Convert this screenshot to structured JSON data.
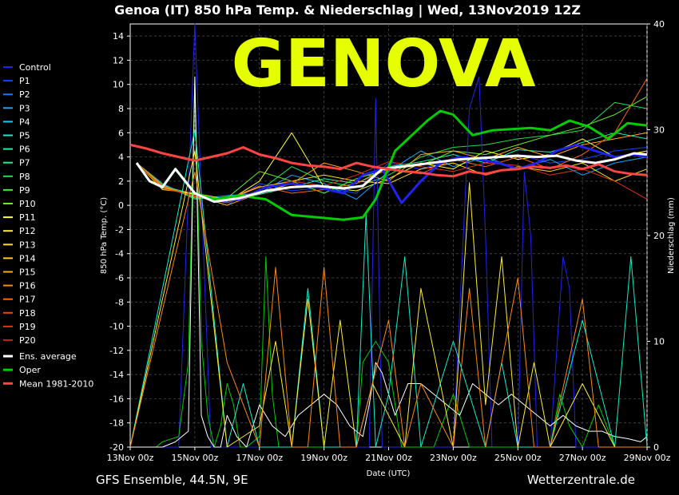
{
  "title": "Genoa  (IT)  850 hPa Temp. & Niederschlag | Wed, 13Nov2019 12Z",
  "watermark": "GENOVA",
  "footer": {
    "left": "GFS Ensemble, 44.5N, 9E",
    "right": "Wetterzentrale.de"
  },
  "chart_data": {
    "type": "line",
    "xlabel": "Date (UTC)",
    "ylabel": "850 hPa Temp. (°C)",
    "y2label": "Niederschlag (mm)",
    "ylim": [
      -20,
      15
    ],
    "y2lim": [
      0,
      40
    ],
    "xlim": [
      0,
      16
    ],
    "x_tick_labels": [
      "13Nov 00z",
      "15Nov 00z",
      "17Nov 00z",
      "19Nov 00z",
      "21Nov 00z",
      "23Nov 00z",
      "25Nov 00z",
      "27Nov 00z",
      "29Nov 00z"
    ],
    "y_ticks": [
      14,
      12,
      10,
      8,
      6,
      4,
      2,
      0,
      -2,
      -4,
      -6,
      -8,
      -10,
      -12,
      -14,
      -16,
      -18,
      -20
    ],
    "y2_ticks": [
      40,
      30,
      20,
      10,
      0
    ],
    "grid": true,
    "legend_placement": "left",
    "legend": [
      {
        "name": "Control",
        "color": "#2222ee"
      },
      {
        "name": "P1",
        "color": "#1144ff"
      },
      {
        "name": "P2",
        "color": "#1177ff"
      },
      {
        "name": "P3",
        "color": "#11aaff"
      },
      {
        "name": "P4",
        "color": "#11ccee"
      },
      {
        "name": "P5",
        "color": "#11eecc"
      },
      {
        "name": "P6",
        "color": "#22eeaa"
      },
      {
        "name": "P7",
        "color": "#22ee88"
      },
      {
        "name": "P8",
        "color": "#22dd55"
      },
      {
        "name": "P9",
        "color": "#33ee33"
      },
      {
        "name": "P10",
        "color": "#66ee22"
      },
      {
        "name": "P11",
        "color": "#ffff33"
      },
      {
        "name": "P12",
        "color": "#ffee33"
      },
      {
        "name": "P13",
        "color": "#ffdd22"
      },
      {
        "name": "P14",
        "color": "#ffcc22"
      },
      {
        "name": "P15",
        "color": "#ffaa11"
      },
      {
        "name": "P16",
        "color": "#ff8811"
      },
      {
        "name": "P17",
        "color": "#ff6611"
      },
      {
        "name": "P18",
        "color": "#ee4411"
      },
      {
        "name": "P19",
        "color": "#dd3311"
      },
      {
        "name": "P20",
        "color": "#bb2211"
      },
      {
        "name": "Ens. average",
        "color": "#ffffff"
      },
      {
        "name": "Oper",
        "color": "#00cc00"
      },
      {
        "name": "Mean 1981-2010",
        "color": "#ff4444"
      }
    ],
    "series": [
      {
        "key": "control",
        "color": "#2222ee",
        "x": [
          0.2,
          0.6,
          1.0,
          1.4,
          2.0,
          2.6,
          3.4,
          4.2,
          5.0,
          5.8,
          6.6,
          7.2,
          7.8,
          8.4,
          9.0,
          9.6,
          10.2,
          10.8,
          11.4,
          12.0,
          12.6,
          13.2,
          13.8,
          14.4,
          15.0,
          15.6,
          16.0
        ],
        "y": [
          3.5,
          2.0,
          1.5,
          3.0,
          1.0,
          0.3,
          0.5,
          1.5,
          1.8,
          1.5,
          1.0,
          2.5,
          3.0,
          0.2,
          2.0,
          3.5,
          4.0,
          3.8,
          3.5,
          3.0,
          3.5,
          4.5,
          5.0,
          4.5,
          4.0,
          4.2,
          4.0
        ]
      },
      {
        "key": "oper",
        "color": "#00cc00",
        "x": [
          0.2,
          0.6,
          1.0,
          1.4,
          2.0,
          2.6,
          3.4,
          4.2,
          5.0,
          5.8,
          6.6,
          7.2,
          7.6,
          8.2,
          8.8,
          9.2,
          9.6,
          10.0,
          10.6,
          11.2,
          11.8,
          12.4,
          13.0,
          13.6,
          14.2,
          14.8,
          15.4,
          16.0
        ],
        "y": [
          3.5,
          2.0,
          1.5,
          3.0,
          1.0,
          0.5,
          0.8,
          0.5,
          -0.8,
          -1.0,
          -1.2,
          -1.0,
          0.5,
          4.5,
          6.0,
          7.0,
          7.8,
          7.5,
          5.8,
          6.2,
          6.3,
          6.4,
          6.2,
          7.0,
          6.5,
          5.5,
          6.8,
          6.6
        ]
      },
      {
        "key": "average",
        "color": "#ffffff",
        "x": [
          0.2,
          0.6,
          1.0,
          1.4,
          2.0,
          2.6,
          3.4,
          4.2,
          5.0,
          5.8,
          6.6,
          7.2,
          7.8,
          8.4,
          9.0,
          9.6,
          10.2,
          10.8,
          11.4,
          12.0,
          12.6,
          13.2,
          13.8,
          14.4,
          15.0,
          15.6,
          16.0
        ],
        "y": [
          3.5,
          2.0,
          1.5,
          3.0,
          1.0,
          0.3,
          0.6,
          1.2,
          1.5,
          1.6,
          1.4,
          1.6,
          3.0,
          3.2,
          3.4,
          3.6,
          3.8,
          3.9,
          4.0,
          4.1,
          4.0,
          4.1,
          3.7,
          3.5,
          3.8,
          4.3,
          4.2
        ]
      },
      {
        "key": "climate",
        "color": "#ff4444",
        "x": [
          0.0,
          0.5,
          1.0,
          1.5,
          2.0,
          2.5,
          3.0,
          3.5,
          4.0,
          4.5,
          5.0,
          5.5,
          6.0,
          6.5,
          7.0,
          7.5,
          8.0,
          8.5,
          9.0,
          9.5,
          10.0,
          10.5,
          11.0,
          11.5,
          12.0,
          12.5,
          13.0,
          13.5,
          14.0,
          14.5,
          15.0,
          15.5,
          16.0
        ],
        "y": [
          5.0,
          4.7,
          4.3,
          4.0,
          3.7,
          4.0,
          4.3,
          4.8,
          4.2,
          3.9,
          3.5,
          3.3,
          3.2,
          3.0,
          3.5,
          3.2,
          3.0,
          2.8,
          2.7,
          2.5,
          2.4,
          2.8,
          2.6,
          2.9,
          3.0,
          3.2,
          3.1,
          3.3,
          3.0,
          3.4,
          2.8,
          2.6,
          2.5
        ]
      },
      {
        "key": "p1",
        "color": "#1144ff",
        "x": [
          0.2,
          1.0,
          2.0,
          3.0,
          4.0,
          5.0,
          6.0,
          7.0,
          8.0,
          9.0,
          10.0,
          11.0,
          12.0,
          13.0,
          14.0,
          15.0,
          16.0
        ],
        "y": [
          3.5,
          1.5,
          0.8,
          0.0,
          1.8,
          1.2,
          1.5,
          1.0,
          3.5,
          3.0,
          3.8,
          4.0,
          4.2,
          3.5,
          3.8,
          4.5,
          4.8
        ]
      },
      {
        "key": "p3",
        "color": "#11aaff",
        "x": [
          0.2,
          1.0,
          2.0,
          3.0,
          4.0,
          5.0,
          6.0,
          7.0,
          8.0,
          9.0,
          10.0,
          11.0,
          12.0,
          13.0,
          14.0,
          15.0,
          16.0
        ],
        "y": [
          3.5,
          1.8,
          0.5,
          0.8,
          1.0,
          2.5,
          1.8,
          0.5,
          2.8,
          4.5,
          3.2,
          4.0,
          3.0,
          3.8,
          2.5,
          3.5,
          4.0
        ]
      },
      {
        "key": "p6",
        "color": "#22eeaa",
        "x": [
          0.2,
          1.0,
          2.0,
          3.0,
          4.0,
          5.0,
          6.0,
          7.0,
          8.0,
          9.0,
          10.0,
          11.0,
          12.0,
          13.0,
          14.0,
          15.0,
          16.0
        ],
        "y": [
          3.5,
          1.6,
          0.9,
          0.4,
          0.9,
          1.5,
          2.2,
          1.8,
          3.2,
          3.6,
          4.2,
          3.5,
          4.6,
          4.4,
          5.2,
          6.0,
          5.5
        ]
      },
      {
        "key": "p8",
        "color": "#22dd55",
        "x": [
          0.2,
          1.0,
          2.0,
          3.0,
          4.0,
          5.0,
          6.0,
          7.0,
          8.0,
          9.0,
          10.0,
          11.0,
          12.0,
          13.0,
          14.0,
          15.0,
          16.0
        ],
        "y": [
          3.5,
          1.5,
          0.7,
          0.2,
          1.2,
          3.2,
          2.0,
          1.5,
          2.5,
          4.0,
          4.8,
          5.0,
          5.5,
          5.8,
          6.2,
          8.5,
          8.0
        ]
      },
      {
        "key": "p10",
        "color": "#66ee22",
        "x": [
          0.2,
          1.0,
          2.0,
          3.0,
          4.0,
          5.0,
          6.0,
          7.0,
          8.0,
          9.0,
          10.0,
          11.0,
          12.0,
          13.0,
          14.0,
          15.0,
          16.0
        ],
        "y": [
          3.5,
          1.7,
          0.6,
          0.6,
          2.8,
          2.0,
          1.0,
          2.2,
          3.0,
          3.3,
          4.5,
          4.2,
          5.0,
          5.8,
          6.5,
          7.5,
          9.0
        ]
      },
      {
        "key": "p11",
        "color": "#ffff33",
        "x": [
          0.2,
          1.0,
          2.0,
          3.0,
          4.0,
          5.0,
          6.0,
          7.0,
          8.0,
          9.0,
          10.0,
          11.0,
          12.0,
          13.0,
          14.0,
          15.0,
          16.0
        ],
        "y": [
          3.5,
          1.4,
          0.9,
          0.3,
          2.0,
          6.0,
          1.5,
          1.2,
          2.2,
          3.5,
          3.0,
          4.5,
          3.8,
          4.2,
          5.5,
          4.0,
          4.5
        ]
      },
      {
        "key": "p13",
        "color": "#ffdd22",
        "x": [
          0.2,
          1.0,
          2.0,
          3.0,
          4.0,
          5.0,
          6.0,
          7.0,
          8.0,
          9.0,
          10.0,
          11.0,
          12.0,
          13.0,
          14.0,
          15.0,
          16.0
        ],
        "y": [
          3.5,
          1.3,
          1.0,
          0.5,
          1.5,
          2.0,
          2.5,
          2.0,
          1.8,
          3.0,
          3.5,
          2.5,
          3.2,
          2.8,
          3.5,
          2.0,
          3.0
        ]
      },
      {
        "key": "p15",
        "color": "#ffaa11",
        "x": [
          0.2,
          1.0,
          2.0,
          3.0,
          4.0,
          5.0,
          6.0,
          7.0,
          8.0,
          9.0,
          10.0,
          11.0,
          12.0,
          13.0,
          14.0,
          15.0,
          16.0
        ],
        "y": [
          3.5,
          1.5,
          0.8,
          0.0,
          1.0,
          1.8,
          3.5,
          2.8,
          2.0,
          4.2,
          4.5,
          3.8,
          4.8,
          4.0,
          5.0,
          5.5,
          6.0
        ]
      },
      {
        "key": "p17",
        "color": "#ff6611",
        "x": [
          0.2,
          1.0,
          2.0,
          3.0,
          4.0,
          5.0,
          6.0,
          7.0,
          8.0,
          9.0,
          10.0,
          11.0,
          12.0,
          13.0,
          14.0,
          15.0,
          16.0
        ],
        "y": [
          3.5,
          1.6,
          0.7,
          0.5,
          1.6,
          1.0,
          1.3,
          1.8,
          3.0,
          2.6,
          3.8,
          3.2,
          4.0,
          3.0,
          4.2,
          6.0,
          10.5
        ]
      },
      {
        "key": "p19",
        "color": "#dd3311",
        "x": [
          0.2,
          1.0,
          2.0,
          3.0,
          4.0,
          5.0,
          6.0,
          7.0,
          8.0,
          9.0,
          10.0,
          11.0,
          12.0,
          13.0,
          14.0,
          15.0,
          16.0
        ],
        "y": [
          3.5,
          1.4,
          0.8,
          0.2,
          1.3,
          2.0,
          1.6,
          2.5,
          3.6,
          3.2,
          2.8,
          3.5,
          3.3,
          2.5,
          3.0,
          2.0,
          0.5
        ]
      },
      {
        "key": "precip_control",
        "color": "#2222ee",
        "y2": true,
        "x": [
          0.0,
          1.0,
          1.5,
          2.0,
          2.5,
          3.0,
          4.0,
          5.0,
          6.0,
          7.0,
          7.4,
          7.6,
          7.8,
          8.0,
          8.2,
          8.4,
          9.0,
          10.0,
          10.5,
          10.8,
          11.0,
          11.2,
          12.0,
          12.2,
          12.4,
          12.6,
          13.0,
          13.4,
          13.6,
          13.8,
          14.0,
          14.5,
          15.0,
          16.0
        ],
        "y": [
          0,
          0,
          0,
          42,
          0,
          0,
          0,
          0,
          0,
          0,
          0,
          33,
          0,
          0,
          0,
          0,
          0,
          0,
          32,
          35,
          20,
          0,
          0,
          26,
          20,
          0,
          0,
          18,
          15,
          0,
          0,
          0,
          0,
          0
        ]
      },
      {
        "key": "precip_oper",
        "color": "#00cc00",
        "y2": true,
        "x": [
          0.0,
          0.8,
          1.0,
          1.5,
          1.8,
          2.0,
          2.2,
          2.4,
          2.6,
          2.8,
          3.0,
          3.2,
          3.4,
          3.6,
          4.0,
          4.2,
          4.4,
          4.6,
          5.0,
          5.5,
          6.0,
          6.5,
          7.0,
          7.2,
          7.6,
          8.0,
          8.2,
          8.4,
          8.6,
          9.0,
          9.4,
          10.0,
          10.5,
          11.0,
          12.0,
          12.5,
          13.0,
          13.3,
          13.6,
          14.0,
          14.5,
          15.0,
          16.0
        ],
        "y": [
          0,
          0,
          0.5,
          1,
          8,
          35,
          10,
          3,
          0,
          2,
          6,
          4,
          0,
          0,
          1,
          18,
          5,
          0,
          0,
          0,
          0,
          0,
          0,
          8,
          10,
          8,
          4,
          0,
          0,
          0,
          0,
          5,
          0,
          0,
          0,
          0,
          0,
          5,
          2,
          0,
          4,
          0,
          0
        ]
      },
      {
        "key": "precip_average",
        "color": "#ffffff",
        "y2": true,
        "x": [
          0.0,
          1.0,
          1.4,
          1.8,
          2.0,
          2.2,
          2.4,
          2.6,
          2.8,
          3.0,
          3.3,
          3.6,
          4.0,
          4.4,
          4.8,
          5.2,
          5.6,
          6.0,
          6.4,
          6.8,
          7.2,
          7.4,
          7.6,
          7.8,
          8.2,
          8.6,
          9.0,
          9.4,
          9.8,
          10.2,
          10.6,
          11.0,
          11.4,
          11.8,
          12.2,
          12.6,
          13.0,
          13.4,
          13.8,
          14.2,
          14.6,
          15.0,
          15.4,
          15.8,
          16.0
        ],
        "y": [
          0,
          0,
          0.5,
          1.5,
          35,
          3,
          1,
          0,
          0,
          3,
          1,
          0,
          4,
          2,
          1,
          3,
          4,
          5,
          4,
          2,
          1,
          4,
          8,
          7,
          3,
          6,
          6,
          5,
          4,
          3,
          6,
          5,
          4,
          5,
          4,
          3,
          2,
          3,
          2,
          1.5,
          1.5,
          1,
          0.8,
          0.5,
          1
        ]
      },
      {
        "key": "precip_p5",
        "color": "#11eecc",
        "y2": true,
        "x": [
          0.0,
          2.0,
          3.0,
          3.5,
          4.0,
          5.0,
          5.5,
          6.0,
          7.0,
          7.3,
          7.6,
          8.0,
          8.5,
          9.0,
          10.0,
          11.0,
          11.5,
          12.0,
          13.0,
          14.0,
          15.0,
          15.5,
          16.0
        ],
        "y": [
          0,
          30,
          0,
          6,
          0,
          0,
          15,
          0,
          0,
          22,
          0,
          5,
          18,
          0,
          10,
          0,
          8,
          0,
          0,
          12,
          0,
          18,
          0
        ]
      },
      {
        "key": "precip_p12",
        "color": "#ffee33",
        "y2": true,
        "x": [
          0.0,
          2.0,
          3.0,
          4.0,
          4.5,
          5.0,
          5.5,
          6.0,
          6.5,
          7.0,
          7.5,
          8.0,
          8.5,
          9.0,
          10.0,
          10.5,
          11.0,
          11.5,
          12.0,
          12.5,
          13.0,
          14.0,
          15.0,
          16.0
        ],
        "y": [
          0,
          28,
          0,
          2,
          10,
          0,
          14,
          0,
          12,
          0,
          6,
          3,
          0,
          15,
          0,
          25,
          4,
          18,
          0,
          8,
          0,
          6,
          0,
          0
        ]
      },
      {
        "key": "precip_p16",
        "color": "#ff8811",
        "y2": true,
        "x": [
          0.0,
          2.0,
          3.0,
          4.0,
          4.5,
          5.0,
          5.5,
          6.0,
          6.5,
          7.0,
          8.0,
          8.5,
          9.0,
          10.0,
          10.5,
          11.0,
          12.0,
          12.5,
          13.0,
          14.0,
          14.5,
          15.0,
          16.0
        ],
        "y": [
          0,
          26,
          8,
          0,
          17,
          0,
          0,
          17,
          0,
          0,
          12,
          0,
          6,
          0,
          15,
          0,
          16,
          0,
          0,
          14,
          0,
          0,
          0
        ]
      }
    ]
  }
}
